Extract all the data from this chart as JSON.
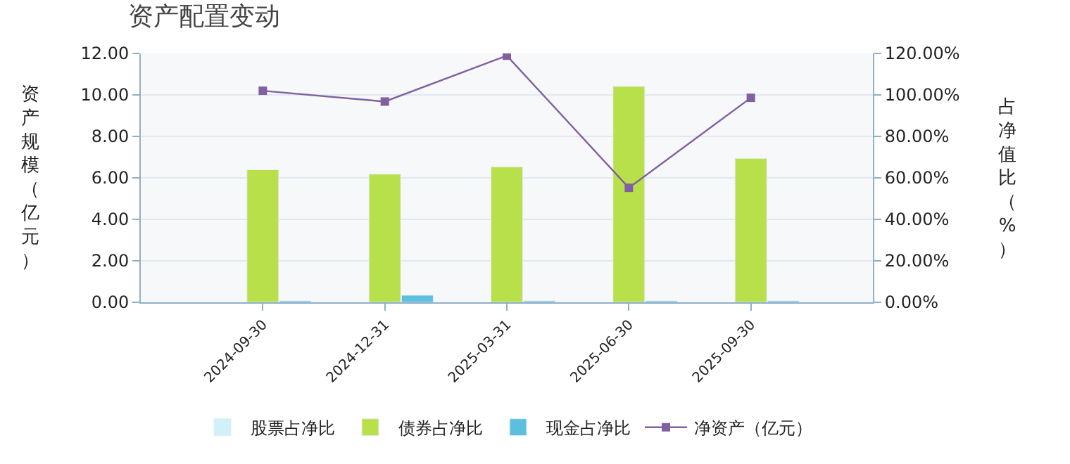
{
  "chart_data": {
    "type": "bar",
    "title": "资产配置变动",
    "ylabel": "资产规模（亿元）",
    "y2label": "占净值比（%）",
    "categories": [
      "2024-09-30",
      "2024-12-31",
      "2025-03-31",
      "2025-06-30",
      "2025-09-30"
    ],
    "series": [
      {
        "name": "股票占净比",
        "color": "#d0f0fa",
        "axis": "y2",
        "values": [
          null,
          null,
          null,
          null,
          null
        ]
      },
      {
        "name": "债券占净比",
        "color": "#b8e04a",
        "axis": "y2",
        "values": [
          63.9,
          61.8,
          65.3,
          104.1,
          69.4
        ]
      },
      {
        "name": "现金占净比",
        "color": "#5bbfe0",
        "axis": "y2",
        "values": [
          0.7,
          3.4,
          0.7,
          0.7,
          0.7
        ]
      },
      {
        "name": "净资产（亿元）",
        "type": "line",
        "color": "#8060a0",
        "marker": "square",
        "values": [
          10.2,
          9.68,
          11.89,
          5.52,
          9.86
        ]
      }
    ],
    "ylim": [
      0,
      12
    ],
    "yticks": [
      {
        "value": 0,
        "label": "0.00"
      },
      {
        "value": 2,
        "label": "2.00"
      },
      {
        "value": 4,
        "label": "4.00"
      },
      {
        "value": 6,
        "label": "6.00"
      },
      {
        "value": 8,
        "label": "8.00"
      },
      {
        "value": 10,
        "label": "10.00"
      },
      {
        "value": 12,
        "label": "12.00"
      }
    ],
    "y2lim": [
      0,
      120
    ],
    "y2ticks": [
      {
        "value": 0,
        "label": "0.00%"
      },
      {
        "value": 20,
        "label": "20.00%"
      },
      {
        "value": 40,
        "label": "40.00%"
      },
      {
        "value": 60,
        "label": "60.00%"
      },
      {
        "value": 80,
        "label": "80.00%"
      },
      {
        "value": 100,
        "label": "100.00%"
      },
      {
        "value": 120,
        "label": "120.00%"
      }
    ],
    "grid": "y",
    "legend": "bottom"
  }
}
